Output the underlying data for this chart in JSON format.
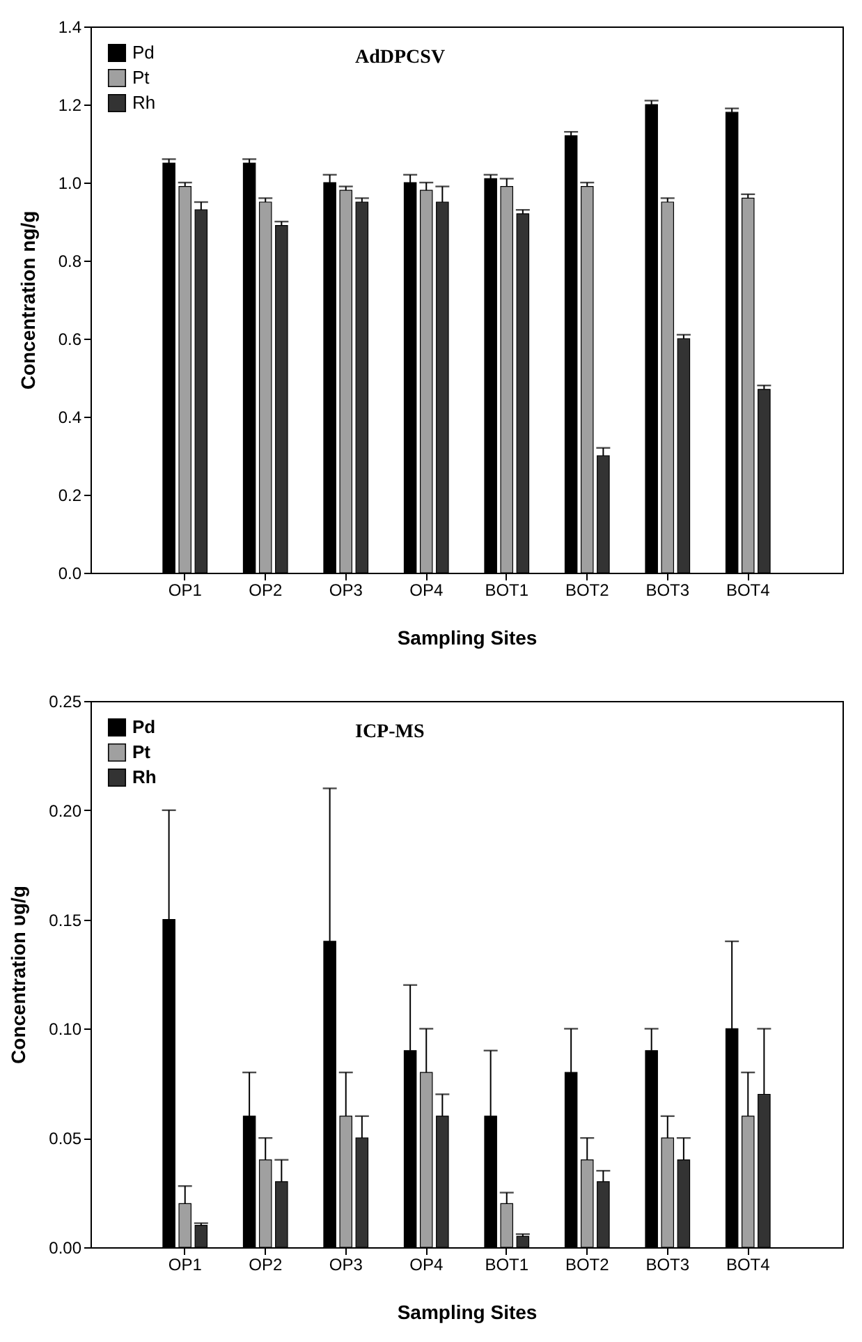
{
  "chart_data": [
    {
      "type": "bar",
      "title": "AdDPCSV",
      "xlabel": "Sampling Sites",
      "ylabel": "Concentration ng/g",
      "categories": [
        "OP1",
        "OP2",
        "OP3",
        "OP4",
        "BOT1",
        "BOT2",
        "BOT3",
        "BOT4"
      ],
      "ylim": [
        0,
        1.4
      ],
      "yticks": [
        {
          "value": 0,
          "label": "0.0"
        },
        0.2,
        0.4,
        0.6,
        0.8,
        {
          "value": 1,
          "label": "1.0"
        },
        1.2,
        1.4
      ],
      "legend": "top left",
      "grid": false,
      "series": [
        {
          "name": "Pd",
          "color": "#000000",
          "values": [
            1.05,
            1.05,
            1.0,
            1.0,
            1.01,
            1.12,
            1.2,
            1.18
          ],
          "errors": [
            [
              1.05,
              1.06
            ],
            [
              1.05,
              1.06
            ],
            [
              1.0,
              1.02
            ],
            [
              1.0,
              1.02
            ],
            [
              1.01,
              1.02
            ],
            [
              1.12,
              1.13
            ],
            [
              1.2,
              1.21
            ],
            [
              1.18,
              1.19
            ]
          ]
        },
        {
          "name": "Pt",
          "color": "#a0a0a0",
          "values": [
            0.99,
            0.95,
            0.98,
            0.98,
            0.99,
            0.99,
            0.95,
            0.96
          ],
          "errors": [
            [
              0.99,
              1.0
            ],
            [
              0.95,
              0.96
            ],
            [
              0.98,
              0.99
            ],
            [
              0.98,
              1.0
            ],
            [
              0.99,
              1.01
            ],
            [
              0.99,
              1.0
            ],
            [
              0.95,
              0.96
            ],
            [
              0.96,
              0.97
            ]
          ]
        },
        {
          "name": "Rh",
          "color": "#333333",
          "values": [
            0.93,
            0.89,
            0.95,
            0.95,
            0.92,
            0.3,
            0.6,
            0.47
          ],
          "errors": [
            [
              0.93,
              0.95
            ],
            [
              0.89,
              0.9
            ],
            [
              0.95,
              0.96
            ],
            [
              0.95,
              0.99
            ],
            [
              0.92,
              0.93
            ],
            [
              0.3,
              0.32
            ],
            [
              0.6,
              0.61
            ],
            [
              0.47,
              0.48
            ]
          ]
        }
      ]
    },
    {
      "type": "bar",
      "title": "ICP-MS",
      "xlabel": "Sampling Sites",
      "ylabel": "Concentration υg/g",
      "categories": [
        "OP1",
        "OP2",
        "OP3",
        "OP4",
        "BOT1",
        "BOT2",
        "BOT3",
        "BOT4"
      ],
      "ylim": [
        0,
        0.25
      ],
      "yticks": [
        {
          "value": 0,
          "label": "0.00"
        },
        0.05,
        {
          "value": 0.1,
          "label": "0.10"
        },
        0.15,
        {
          "value": 0.2,
          "label": "0.20"
        },
        0.25
      ],
      "legend": "top left",
      "grid": false,
      "series": [
        {
          "name": "Pd",
          "color": "#000000",
          "values": [
            0.15,
            0.06,
            0.14,
            0.09,
            0.06,
            0.08,
            0.09,
            0.1
          ],
          "errors": [
            [
              0.15,
              0.2
            ],
            [
              0.06,
              0.08
            ],
            [
              0.14,
              0.21
            ],
            [
              0.09,
              0.12
            ],
            [
              0.06,
              0.09
            ],
            [
              0.08,
              0.1
            ],
            [
              0.09,
              0.1
            ],
            [
              0.1,
              0.14
            ]
          ]
        },
        {
          "name": "Pt",
          "color": "#a0a0a0",
          "values": [
            0.02,
            0.04,
            0.06,
            0.08,
            0.02,
            0.04,
            0.05,
            0.06
          ],
          "errors": [
            [
              0.02,
              0.028
            ],
            [
              0.04,
              0.05
            ],
            [
              0.06,
              0.08
            ],
            [
              0.08,
              0.1
            ],
            [
              0.02,
              0.025
            ],
            [
              0.04,
              0.05
            ],
            [
              0.05,
              0.06
            ],
            [
              0.06,
              0.08
            ]
          ]
        },
        {
          "name": "Rh",
          "color": "#333333",
          "values": [
            0.01,
            0.03,
            0.05,
            0.06,
            0.005,
            0.03,
            0.04,
            0.07
          ],
          "errors": [
            [
              0.01,
              0.011
            ],
            [
              0.03,
              0.04
            ],
            [
              0.05,
              0.06
            ],
            [
              0.06,
              0.07
            ],
            [
              0.005,
              0.006
            ],
            [
              0.03,
              0.035
            ],
            [
              0.04,
              0.05
            ],
            [
              0.07,
              0.1
            ]
          ]
        }
      ]
    }
  ]
}
